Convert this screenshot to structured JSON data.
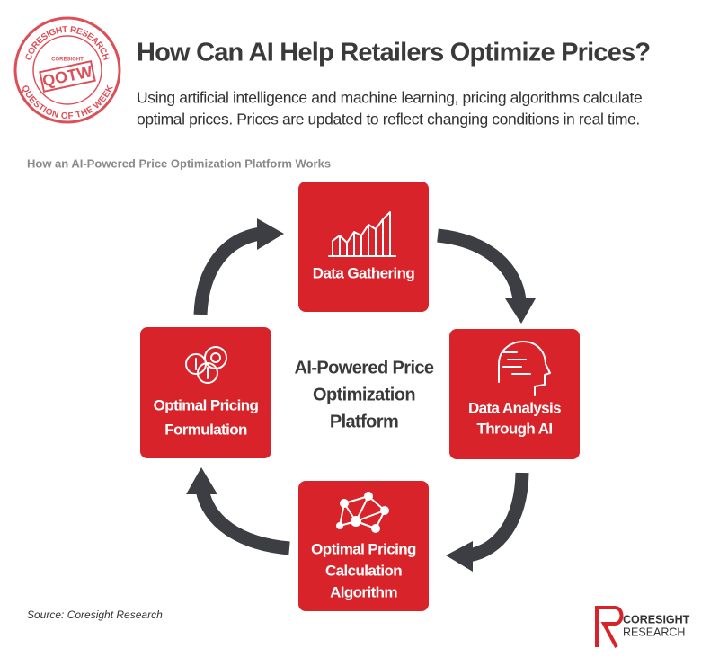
{
  "header": {
    "title": "How Can AI Help Retailers Optimize Prices?",
    "subtitle_lines": [
      "Using artificial intelligence and machine learning, pricing algorithms calculate",
      "optimal prices. Prices are updated to reflect changing conditions in real time."
    ]
  },
  "stamp": {
    "top_arc": "CORESIGHT RESEARCH",
    "bottom_arc": "QUESTION OF THE WEEK",
    "center": "QOTW",
    "mini_logo": "CORESIGHT"
  },
  "figure_title": "How an AI-Powered Price Optimization Platform Works",
  "center_lines": [
    "AI-Powered Price",
    "Optimization",
    "Platform"
  ],
  "nodes": [
    {
      "label_lines": [
        "Data Gathering"
      ]
    },
    {
      "label_lines": [
        "Data Analysis",
        "Through AI"
      ]
    },
    {
      "label_lines": [
        "Optimal Pricing",
        "Calculation",
        "Algorithm"
      ]
    },
    {
      "label_lines": [
        "Optimal Pricing",
        "Formulation"
      ]
    }
  ],
  "source": "Source: Coresight Research",
  "logo": {
    "line1": "CORESIGHT",
    "line2": "RESEARCH"
  }
}
